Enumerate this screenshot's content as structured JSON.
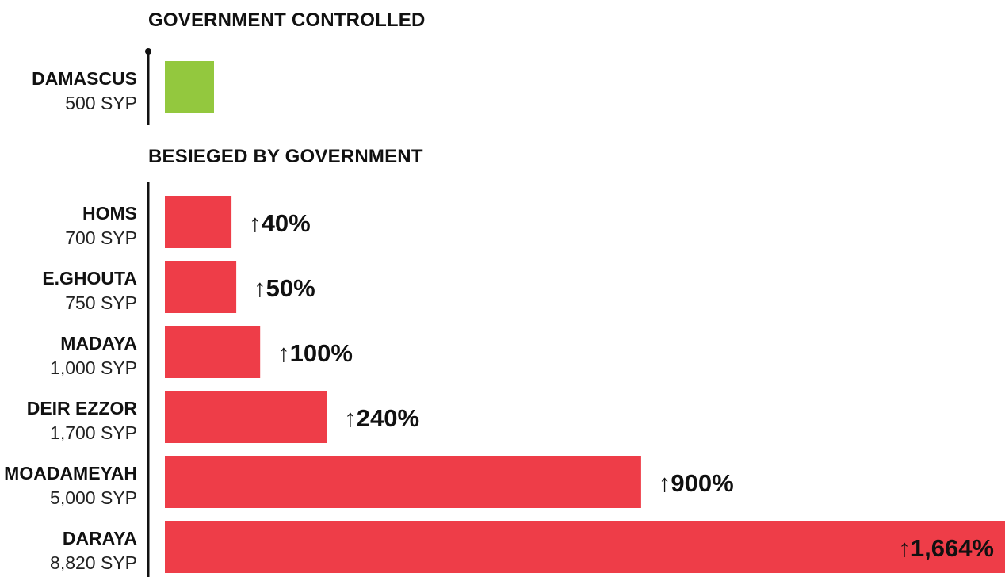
{
  "chart_data": {
    "type": "bar",
    "orientation": "horizontal",
    "unit": "SYP",
    "colors": {
      "government_controlled": "#93c83e",
      "besieged": "#ee3d48",
      "axis": "#111111"
    },
    "groups": [
      {
        "heading": "GOVERNMENT CONTROLLED",
        "bars": [
          {
            "city": "DAMASCUS",
            "price_label": "500 SYP",
            "value": 500,
            "change_label": ""
          }
        ]
      },
      {
        "heading": "BESIEGED BY GOVERNMENT",
        "bars": [
          {
            "city": "HOMS",
            "price_label": "700 SYP",
            "value": 700,
            "change_label": "↑40%"
          },
          {
            "city": "E.GHOUTA",
            "price_label": "750 SYP",
            "value": 750,
            "change_label": "↑50%"
          },
          {
            "city": "MADAYA",
            "price_label": "1,000 SYP",
            "value": 1000,
            "change_label": "↑100%"
          },
          {
            "city": "DEIR EZZOR",
            "price_label": "1,700 SYP",
            "value": 1700,
            "change_label": "↑240%"
          },
          {
            "city": "MOADAMEYAH",
            "price_label": "5,000 SYP",
            "value": 5000,
            "change_label": "↑900%"
          },
          {
            "city": "DARAYA",
            "price_label": "8,820 SYP",
            "value": 8820,
            "change_label": "↑1,664%"
          }
        ]
      }
    ],
    "xlim": [
      0,
      8820
    ],
    "grid": false,
    "legend": "none"
  }
}
